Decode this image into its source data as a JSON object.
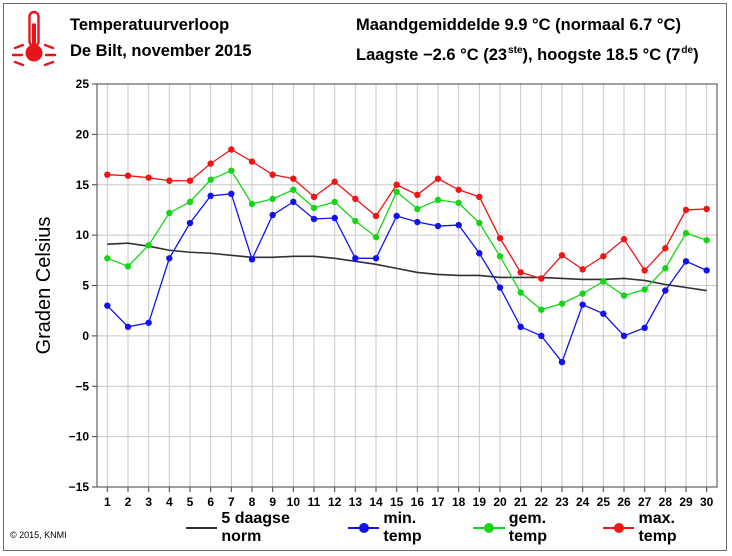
{
  "header": {
    "title": "Temperatuurverloop",
    "subtitle": "De Bilt, november 2015",
    "stats_line1": "Maandgemiddelde 9.9 °C (normaal 6.7 °C)",
    "stats_line2_pre": "Laagste −2.6 °C (23",
    "stats_line2_sup1": "ste",
    "stats_line2_mid": "), hoogste 18.5 °C (7",
    "stats_line2_sup2": "de",
    "stats_line2_post": ")"
  },
  "logo": {
    "icon": "thermometer-icon",
    "color": "#e8141b"
  },
  "copyright": "© 2015, KNMI",
  "colors": {
    "norm": "#303030",
    "min": "#1212f0",
    "mean": "#16d516",
    "max": "#f01414",
    "grid": "#c8c8c8",
    "logo": "#e8141b"
  },
  "chart_data": {
    "type": "line",
    "xlabel": "",
    "ylabel": "Graden Celsius",
    "ylim": [
      -15,
      25
    ],
    "yticks": [
      -15,
      -10,
      -5,
      0,
      5,
      10,
      15,
      20,
      25
    ],
    "x": [
      1,
      2,
      3,
      4,
      5,
      6,
      7,
      8,
      9,
      10,
      11,
      12,
      13,
      14,
      15,
      16,
      17,
      18,
      19,
      20,
      21,
      22,
      23,
      24,
      25,
      26,
      27,
      28,
      29,
      30
    ],
    "grid": true,
    "legend_position": "bottom",
    "series": [
      {
        "name": "5 daagse norm",
        "key": "norm",
        "markers": false,
        "values": [
          9.1,
          9.2,
          8.9,
          8.5,
          8.3,
          8.2,
          8.0,
          7.8,
          7.8,
          7.9,
          7.9,
          7.7,
          7.4,
          7.1,
          6.7,
          6.3,
          6.1,
          6.0,
          6.0,
          5.8,
          5.8,
          5.8,
          5.7,
          5.6,
          5.6,
          5.7,
          5.5,
          5.1,
          4.8,
          4.5
        ]
      },
      {
        "name": "min. temp",
        "key": "min",
        "markers": true,
        "values": [
          3.0,
          0.9,
          1.3,
          7.7,
          11.2,
          13.9,
          14.1,
          7.6,
          12.0,
          13.3,
          11.6,
          11.7,
          7.7,
          7.7,
          11.9,
          11.3,
          10.9,
          11.0,
          8.2,
          4.8,
          0.9,
          0.0,
          -2.6,
          3.1,
          2.2,
          0.0,
          0.8,
          4.5,
          7.4,
          6.5
        ]
      },
      {
        "name": "gem. temp",
        "key": "mean",
        "markers": true,
        "values": [
          7.7,
          6.9,
          9.0,
          12.2,
          13.3,
          15.5,
          16.4,
          13.1,
          13.6,
          14.5,
          12.7,
          13.3,
          11.4,
          9.8,
          14.3,
          12.6,
          13.5,
          13.2,
          11.2,
          7.9,
          4.3,
          2.6,
          3.2,
          4.2,
          5.4,
          4.0,
          4.6,
          6.7,
          10.2,
          9.5
        ]
      },
      {
        "name": "max. temp",
        "key": "max",
        "markers": true,
        "values": [
          16.0,
          15.9,
          15.7,
          15.4,
          15.4,
          17.1,
          18.5,
          17.3,
          16.0,
          15.6,
          13.8,
          15.3,
          13.6,
          11.9,
          15.0,
          14.0,
          15.6,
          14.5,
          13.8,
          9.7,
          6.3,
          5.7,
          8.0,
          6.6,
          7.9,
          9.6,
          6.5,
          8.7,
          12.5,
          12.6
        ]
      }
    ]
  }
}
